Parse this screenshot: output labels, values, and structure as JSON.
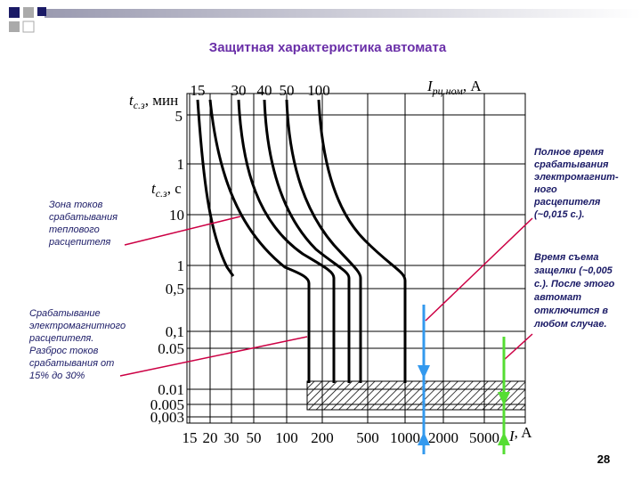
{
  "title": "Защитная характеристика автомата",
  "top_axis": {
    "ticks": [
      "15",
      "30",
      "40",
      "50",
      "100"
    ],
    "label": {
      "main": "I",
      "sub": "рц.ном",
      "unit": ", А"
    }
  },
  "left_axis_min": {
    "label": {
      "main": "t",
      "sub": "с.з",
      "unit": ", мин"
    },
    "ticks": [
      "5",
      "1"
    ]
  },
  "left_axis_s": {
    "label": {
      "main": "t",
      "sub": "с.з",
      "unit": ", с"
    },
    "ticks": [
      "10",
      "1",
      "0,5",
      "0,1",
      "0.05",
      "0.01",
      "0.005",
      "0,003"
    ]
  },
  "bottom_axis": {
    "ticks": [
      "15",
      "20",
      "30",
      "50",
      "100",
      "200",
      "500",
      "1000",
      "2000",
      "5000"
    ],
    "label": {
      "main": "I",
      "unit": ", A"
    }
  },
  "annotations": {
    "thermal_zone": [
      "Зона токов",
      "срабатывания",
      "теплового",
      "расцепителя"
    ],
    "magnetic": [
      "Срабатывание",
      "электромагнитного",
      "расцепителя.",
      "Разброс токов",
      "срабатывания  от",
      "15% до 30%"
    ],
    "full_time": [
      "Полное время",
      "срабатывания",
      "электромагнит-",
      "ного",
      "расцепителя",
      "(~0,015 с.)."
    ],
    "latch_time": [
      "Время съема",
      "защелки (~0,005",
      "с.). После этого",
      "автомат",
      "отключится в",
      "любом случае."
    ]
  },
  "page_number": "28"
}
